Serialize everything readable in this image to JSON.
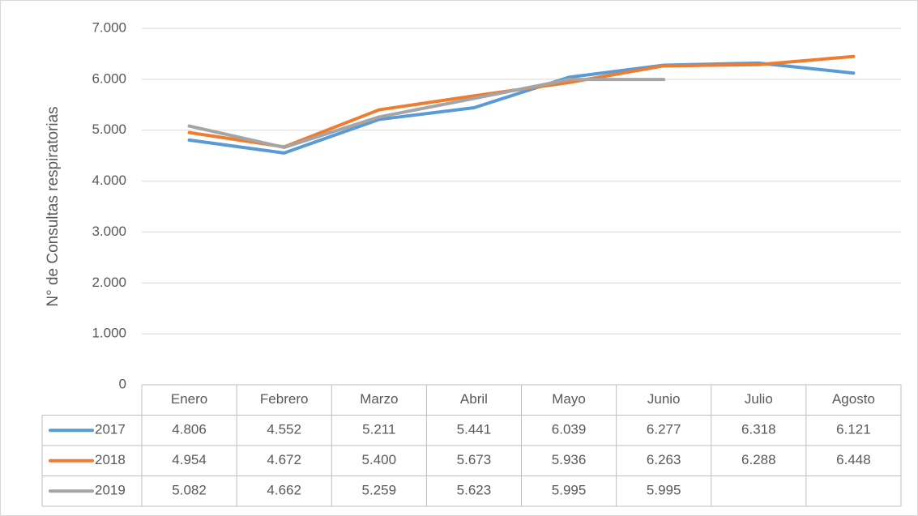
{
  "chart_data": {
    "type": "line",
    "y_axis_label": "N° de Consultas respiratorias",
    "categories": [
      "Enero",
      "Febrero",
      "Marzo",
      "Abril",
      "Mayo",
      "Junio",
      "Julio",
      "Agosto"
    ],
    "series": [
      {
        "name": "2017",
        "color": "#5b9bd5",
        "values": [
          4806,
          4552,
          5211,
          5441,
          6039,
          6277,
          6318,
          6121
        ],
        "value_labels": [
          "4.806",
          "4.552",
          "5.211",
          "5.441",
          "6.039",
          "6.277",
          "6.318",
          "6.121"
        ]
      },
      {
        "name": "2018",
        "color": "#ed7d31",
        "values": [
          4954,
          4672,
          5400,
          5673,
          5936,
          6263,
          6288,
          6448
        ],
        "value_labels": [
          "4.954",
          "4.672",
          "5.400",
          "5.673",
          "5.936",
          "6.263",
          "6.288",
          "6.448"
        ]
      },
      {
        "name": "2019",
        "color": "#a5a5a5",
        "values": [
          5082,
          4662,
          5259,
          5623,
          5995,
          5995,
          null,
          null
        ],
        "value_labels": [
          "5.082",
          "4.662",
          "5.259",
          "5.623",
          "5.995",
          "5.995",
          null,
          null
        ]
      }
    ],
    "ylim": [
      0,
      7000
    ],
    "yticks": [
      0,
      {
        "value": 1000,
        "label": "1.000"
      },
      {
        "value": 2000,
        "label": "2.000"
      },
      {
        "value": 3000,
        "label": "3.000"
      },
      {
        "value": 4000,
        "label": "4.000"
      },
      {
        "value": 5000,
        "label": "5.000"
      },
      {
        "value": 6000,
        "label": "6.000"
      },
      {
        "value": 7000,
        "label": "7.000"
      }
    ],
    "grid": true,
    "legend": "data-table"
  }
}
